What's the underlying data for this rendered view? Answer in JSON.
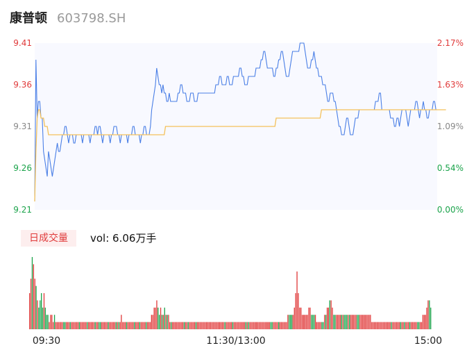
{
  "stock": {
    "name": "康普顿",
    "code": "603798.SH"
  },
  "volume_panel": {
    "tab_label": "日成交量",
    "vol_label": "vol: 6.06万手"
  },
  "colors": {
    "price_line": "#4a7fe6",
    "avg_line": "#f4c15a",
    "up": "#e03a3a",
    "down": "#1aa34a",
    "neutral": "#888888"
  },
  "chart_data": [
    {
      "type": "line",
      "title": "",
      "y_ticks": [
        "9.41",
        "9.36",
        "9.31",
        "9.26",
        "9.21"
      ],
      "y_ticks_right": [
        "2.17%",
        "1.63%",
        "1.09%",
        "0.54%",
        "0.00%"
      ],
      "ylim": [
        9.21,
        9.41
      ],
      "x_ticks": [
        "09:30",
        "11:30/13:00",
        "15:00"
      ],
      "price": [
        9.22,
        9.39,
        9.32,
        9.34,
        9.34,
        9.32,
        9.32,
        9.28,
        9.27,
        9.26,
        9.25,
        9.28,
        9.27,
        9.26,
        9.25,
        9.26,
        9.27,
        9.28,
        9.29,
        9.28,
        9.28,
        9.29,
        9.3,
        9.3,
        9.31,
        9.31,
        9.3,
        9.29,
        9.3,
        9.3,
        9.3,
        9.29,
        9.29,
        9.3,
        9.3,
        9.3,
        9.3,
        9.3,
        9.29,
        9.3,
        9.3,
        9.3,
        9.3,
        9.3,
        9.29,
        9.3,
        9.3,
        9.3,
        9.31,
        9.31,
        9.3,
        9.31,
        9.31,
        9.3,
        9.29,
        9.3,
        9.3,
        9.3,
        9.3,
        9.3,
        9.29,
        9.3,
        9.3,
        9.31,
        9.31,
        9.31,
        9.3,
        9.3,
        9.29,
        9.3,
        9.3,
        9.3,
        9.3,
        9.3,
        9.29,
        9.3,
        9.3,
        9.3,
        9.31,
        9.31,
        9.3,
        9.3,
        9.3,
        9.3,
        9.29,
        9.3,
        9.3,
        9.31,
        9.31,
        9.3,
        9.3,
        9.3,
        9.31,
        9.33,
        9.34,
        9.35,
        9.36,
        9.38,
        9.37,
        9.36,
        9.36,
        9.35,
        9.36,
        9.35,
        9.35,
        9.34,
        9.34,
        9.35,
        9.34,
        9.34,
        9.34,
        9.34,
        9.34,
        9.34,
        9.35,
        9.35,
        9.36,
        9.36,
        9.35,
        9.35,
        9.35,
        9.34,
        9.34,
        9.34,
        9.35,
        9.35,
        9.35,
        9.34,
        9.34,
        9.34,
        9.35,
        9.35,
        9.35,
        9.35,
        9.35,
        9.35,
        9.35,
        9.35,
        9.35,
        9.35,
        9.35,
        9.35,
        9.35,
        9.35,
        9.36,
        9.36,
        9.36,
        9.37,
        9.37,
        9.36,
        9.36,
        9.36,
        9.36,
        9.37,
        9.37,
        9.36,
        9.36,
        9.36,
        9.37,
        9.37,
        9.37,
        9.37,
        9.37,
        9.38,
        9.38,
        9.37,
        9.37,
        9.36,
        9.36,
        9.36,
        9.37,
        9.37,
        9.37,
        9.37,
        9.37,
        9.37,
        9.38,
        9.38,
        9.38,
        9.38,
        9.39,
        9.39,
        9.4,
        9.4,
        9.39,
        9.38,
        9.38,
        9.38,
        9.38,
        9.38,
        9.37,
        9.37,
        9.38,
        9.38,
        9.39,
        9.39,
        9.4,
        9.4,
        9.39,
        9.38,
        9.37,
        9.37,
        9.37,
        9.38,
        9.39,
        9.4,
        9.4,
        9.4,
        9.4,
        9.4,
        9.4,
        9.41,
        9.41,
        9.41,
        9.41,
        9.4,
        9.39,
        9.38,
        9.38,
        9.38,
        9.39,
        9.39,
        9.4,
        9.39,
        9.38,
        9.38,
        9.37,
        9.37,
        9.37,
        9.36,
        9.36,
        9.36,
        9.35,
        9.34,
        9.34,
        9.35,
        9.35,
        9.35,
        9.34,
        9.34,
        9.33,
        9.32,
        9.31,
        9.31,
        9.3,
        9.3,
        9.3,
        9.31,
        9.32,
        9.32,
        9.31,
        9.3,
        9.3,
        9.3,
        9.31,
        9.32,
        9.32,
        9.32,
        9.33,
        9.33,
        9.33,
        9.33,
        9.33,
        9.33,
        9.33,
        9.33,
        9.33,
        9.33,
        9.33,
        9.33,
        9.33,
        9.34,
        9.34,
        9.34,
        9.35,
        9.35,
        9.33,
        9.33,
        9.33,
        9.33,
        9.33,
        9.33,
        9.33,
        9.32,
        9.32,
        9.32,
        9.31,
        9.31,
        9.32,
        9.32,
        9.31,
        9.32,
        9.33,
        9.33,
        9.33,
        9.33,
        9.32,
        9.31,
        9.32,
        9.33,
        9.33,
        9.33,
        9.33,
        9.34,
        9.34,
        9.33,
        9.32,
        9.33,
        9.33,
        9.34,
        9.33,
        9.33,
        9.32,
        9.32,
        9.33,
        9.33,
        9.33,
        9.34,
        9.34,
        9.33,
        9.33
      ],
      "avg": [
        9.22,
        9.28,
        9.32,
        9.33,
        9.33,
        9.32,
        9.32,
        9.32,
        9.31,
        9.31,
        9.31,
        9.3,
        9.3,
        9.3,
        9.3,
        9.3,
        9.3,
        9.3,
        9.3,
        9.3,
        9.3,
        9.3,
        9.3,
        9.3,
        9.3,
        9.3,
        9.3,
        9.3,
        9.3,
        9.3,
        9.3,
        9.3,
        9.3,
        9.3,
        9.3,
        9.3,
        9.3,
        9.3,
        9.3,
        9.3,
        9.3,
        9.3,
        9.3,
        9.3,
        9.3,
        9.3,
        9.3,
        9.3,
        9.3,
        9.3,
        9.3,
        9.3,
        9.3,
        9.3,
        9.3,
        9.3,
        9.3,
        9.3,
        9.3,
        9.3,
        9.3,
        9.3,
        9.3,
        9.3,
        9.3,
        9.3,
        9.3,
        9.3,
        9.3,
        9.3,
        9.3,
        9.3,
        9.3,
        9.3,
        9.3,
        9.3,
        9.3,
        9.3,
        9.3,
        9.3,
        9.3,
        9.3,
        9.3,
        9.3,
        9.3,
        9.3,
        9.3,
        9.3,
        9.3,
        9.3,
        9.3,
        9.3,
        9.3,
        9.3,
        9.3,
        9.3,
        9.3,
        9.3,
        9.3,
        9.3,
        9.3,
        9.3,
        9.3,
        9.3,
        9.31,
        9.31,
        9.31,
        9.31,
        9.31,
        9.31,
        9.31,
        9.31,
        9.31,
        9.31,
        9.31,
        9.31,
        9.31,
        9.31,
        9.31,
        9.31,
        9.31,
        9.31,
        9.31,
        9.31,
        9.31,
        9.31,
        9.31,
        9.31,
        9.31,
        9.31,
        9.31,
        9.31,
        9.31,
        9.31,
        9.31,
        9.31,
        9.31,
        9.31,
        9.31,
        9.31,
        9.31,
        9.31,
        9.31,
        9.31,
        9.31,
        9.31,
        9.31,
        9.31,
        9.31,
        9.31,
        9.31,
        9.31,
        9.31,
        9.31,
        9.31,
        9.31,
        9.31,
        9.31,
        9.31,
        9.31,
        9.31,
        9.31,
        9.31,
        9.31,
        9.31,
        9.31,
        9.31,
        9.31,
        9.31,
        9.31,
        9.31,
        9.31,
        9.31,
        9.31,
        9.31,
        9.31,
        9.31,
        9.31,
        9.31,
        9.31,
        9.31,
        9.31,
        9.31,
        9.31,
        9.31,
        9.31,
        9.31,
        9.31,
        9.31,
        9.31,
        9.31,
        9.31,
        9.32,
        9.32,
        9.32,
        9.32,
        9.32,
        9.32,
        9.32,
        9.32,
        9.32,
        9.32,
        9.32,
        9.32,
        9.32,
        9.32,
        9.32,
        9.32,
        9.32,
        9.32,
        9.32,
        9.32,
        9.32,
        9.32,
        9.32,
        9.32,
        9.32,
        9.32,
        9.32,
        9.32,
        9.32,
        9.32,
        9.32,
        9.32,
        9.32,
        9.32,
        9.32,
        9.32,
        9.33,
        9.33,
        9.33,
        9.33,
        9.33,
        9.33,
        9.33,
        9.33,
        9.33,
        9.33,
        9.33,
        9.33,
        9.33,
        9.33,
        9.33,
        9.33,
        9.33,
        9.33,
        9.33,
        9.33,
        9.33,
        9.33,
        9.33,
        9.33,
        9.33,
        9.33,
        9.33,
        9.33,
        9.33,
        9.33,
        9.33,
        9.33,
        9.33,
        9.33,
        9.33,
        9.33,
        9.33,
        9.33,
        9.33,
        9.33,
        9.33,
        9.33,
        9.33,
        9.33,
        9.33,
        9.33,
        9.33,
        9.33,
        9.33,
        9.33,
        9.33,
        9.33,
        9.33,
        9.33,
        9.33,
        9.33,
        9.33,
        9.33,
        9.33,
        9.33,
        9.33,
        9.33,
        9.33,
        9.33,
        9.33,
        9.33,
        9.33,
        9.33,
        9.33,
        9.33,
        9.33,
        9.33,
        9.33,
        9.33,
        9.33,
        9.33,
        9.33,
        9.33,
        9.33,
        9.33,
        9.33,
        9.33,
        9.33,
        9.33,
        9.33,
        9.33,
        9.33,
        9.33,
        9.33,
        9.33,
        9.33,
        9.33,
        9.33,
        9.33,
        9.33,
        9.33,
        9.33,
        9.33,
        9.33,
        9.33
      ]
    },
    {
      "type": "bar",
      "title": "",
      "volume": [
        5,
        7,
        10,
        9,
        7,
        6,
        4,
        3,
        4,
        5,
        3,
        5,
        3,
        2,
        2,
        1,
        2,
        2,
        1,
        2,
        1,
        1,
        1,
        1,
        1,
        1,
        1,
        1,
        1,
        1,
        1,
        1,
        1,
        1,
        1,
        1,
        1,
        1,
        1,
        1,
        1,
        1,
        1,
        1,
        1,
        1,
        1,
        1,
        1,
        1,
        1,
        1,
        1,
        1,
        1,
        1,
        1,
        1,
        1,
        1,
        1,
        1,
        1,
        1,
        1,
        1,
        1,
        1,
        1,
        1,
        2,
        1,
        1,
        1,
        1,
        1,
        1,
        1,
        1,
        1,
        1,
        1,
        1,
        1,
        1,
        1,
        1,
        1,
        1,
        1,
        1,
        1,
        1,
        2,
        2,
        3,
        3,
        4,
        3,
        2,
        3,
        2,
        2,
        3,
        2,
        2,
        2,
        1,
        1,
        1,
        1,
        1,
        1,
        1,
        1,
        1,
        1,
        1,
        1,
        1,
        1,
        1,
        1,
        1,
        1,
        1,
        1,
        1,
        1,
        1,
        1,
        1,
        1,
        1,
        1,
        1,
        1,
        1,
        1,
        1,
        1,
        1,
        1,
        1,
        1,
        1,
        1,
        1,
        1,
        1,
        1,
        1,
        1,
        1,
        1,
        1,
        1,
        1,
        1,
        1,
        1,
        1,
        1,
        1,
        1,
        1,
        1,
        1,
        1,
        1,
        1,
        1,
        1,
        1,
        1,
        1,
        1,
        1,
        1,
        1,
        1,
        1,
        1,
        1,
        1,
        1,
        1,
        1,
        1,
        1,
        1,
        1,
        1,
        1,
        1,
        1,
        1,
        2,
        2,
        2,
        2,
        2,
        3,
        5,
        8,
        5,
        3,
        3,
        2,
        2,
        2,
        2,
        2,
        3,
        3,
        2,
        2,
        2,
        2,
        1,
        1,
        1,
        1,
        1,
        1,
        2,
        2,
        3,
        3,
        4,
        4,
        3,
        2,
        2,
        2,
        2,
        2,
        2,
        2,
        2,
        2,
        2,
        2,
        2,
        2,
        2,
        2,
        2,
        2,
        2,
        2,
        2,
        2,
        2,
        2,
        2,
        2,
        2,
        2,
        2,
        2,
        1,
        1,
        1,
        1,
        1,
        1,
        1,
        1,
        1,
        1,
        1,
        1,
        1,
        1,
        1,
        1,
        1,
        1,
        1,
        1,
        1,
        1,
        1,
        1,
        1,
        1,
        1,
        1,
        1,
        1,
        1,
        1,
        1,
        1,
        1,
        1,
        1,
        1,
        1,
        2,
        2,
        2,
        3,
        4,
        4,
        3
      ]
    }
  ]
}
